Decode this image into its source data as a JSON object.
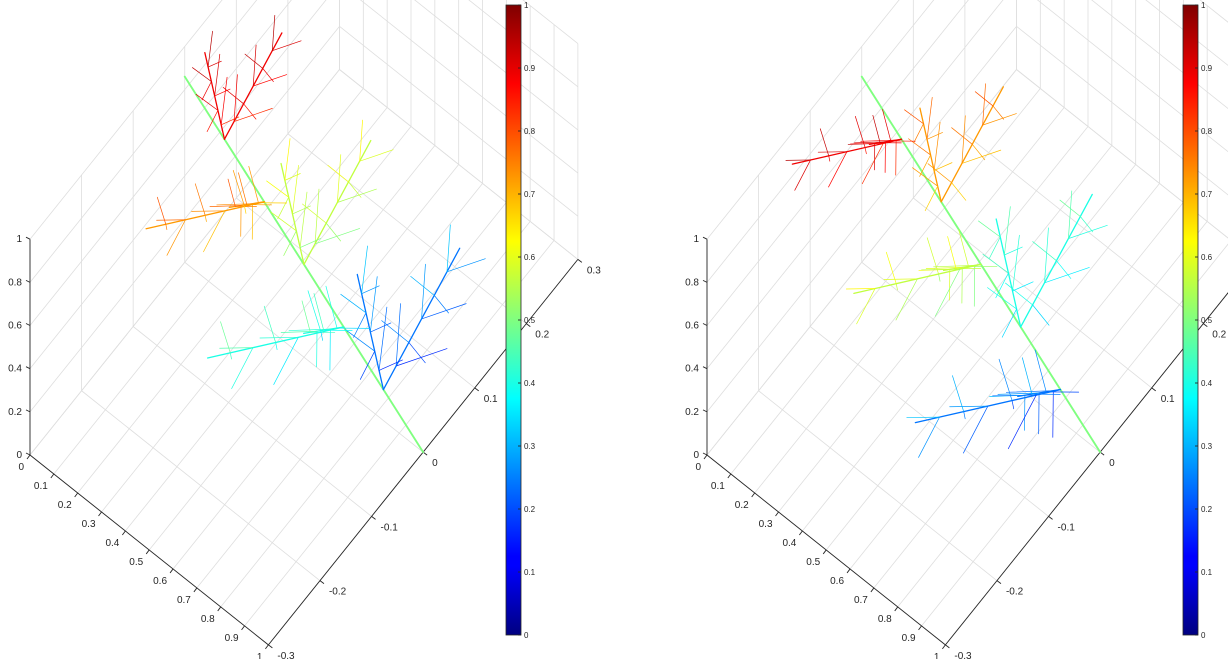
{
  "figure": {
    "panels": [
      "left",
      "right"
    ]
  },
  "chart_data": [
    {
      "type": "scatter",
      "subtype": "3d-fractal-tree",
      "title": "",
      "xlabel": "",
      "ylabel": "",
      "zlabel": "",
      "x_ticks": [
        "0",
        "0.1",
        "0.2",
        "0.3",
        "0.4",
        "0.5",
        "0.6",
        "0.7",
        "0.8",
        "0.9",
        "1"
      ],
      "y_ticks": [
        "-0.3",
        "-0.2",
        "-0.1",
        "0",
        "0.1",
        "0.2",
        "0.3"
      ],
      "z_ticks": [
        "0",
        "0.2",
        "0.4",
        "0.6",
        "0.8",
        "1"
      ],
      "xlim": [
        0,
        1
      ],
      "ylim": [
        -0.3,
        0.3
      ],
      "zlim": [
        0,
        1
      ],
      "grid": true,
      "colormap": "jet",
      "colorbar": {
        "ticks": [
          "0",
          "0.1",
          "0.2",
          "0.3",
          "0.4",
          "0.5",
          "0.6",
          "0.7",
          "0.8",
          "0.9",
          "1"
        ],
        "range": [
          0,
          1
        ],
        "position": "right"
      },
      "tree": {
        "start": [
          0,
          0,
          0.86
        ],
        "end": [
          1,
          0,
          0
        ],
        "angle_deg": 60,
        "depth": 4,
        "ratio": 0.32,
        "branch_sign": 1
      }
    },
    {
      "type": "scatter",
      "subtype": "3d-fractal-tree",
      "title": "",
      "xlabel": "",
      "ylabel": "",
      "zlabel": "",
      "x_ticks": [
        "0",
        "0.1",
        "0.2",
        "0.3",
        "0.4",
        "0.5",
        "0.6",
        "0.7",
        "0.8",
        "0.9",
        "1"
      ],
      "y_ticks": [
        "-0.3",
        "-0.2",
        "-0.1",
        "0",
        "0.1",
        "0.2",
        "0.3"
      ],
      "z_ticks": [
        "0",
        "0.2",
        "0.4",
        "0.6",
        "0.8",
        "1"
      ],
      "xlim": [
        0,
        1
      ],
      "ylim": [
        -0.3,
        0.3
      ],
      "zlim": [
        0,
        1
      ],
      "grid": true,
      "colormap": "jet",
      "colorbar": {
        "ticks": [
          "0",
          "0.1",
          "0.2",
          "0.3",
          "0.4",
          "0.5",
          "0.6",
          "0.7",
          "0.8",
          "0.9",
          "1"
        ],
        "range": [
          0,
          1
        ],
        "position": "right"
      },
      "tree": {
        "start": [
          0,
          0,
          0.86
        ],
        "end": [
          1,
          0,
          0
        ],
        "angle_deg": 60,
        "depth": 4,
        "ratio": 0.32,
        "branch_sign": -1
      }
    }
  ]
}
